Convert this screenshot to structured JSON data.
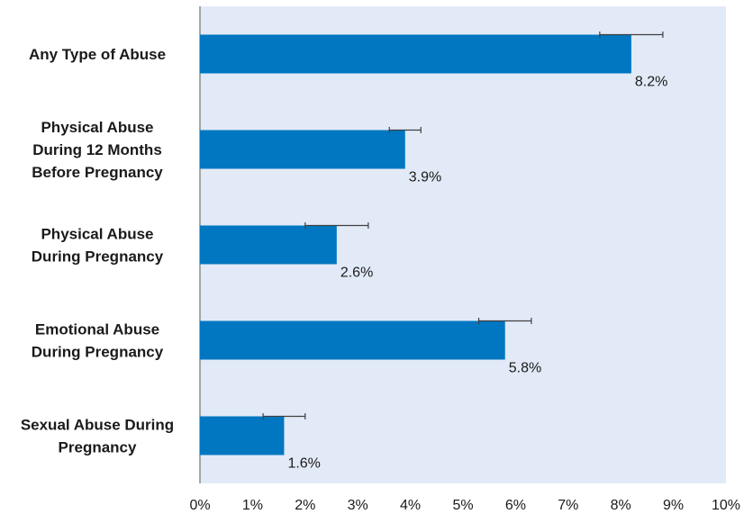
{
  "chart_data": {
    "type": "bar",
    "orientation": "horizontal",
    "categories": [
      [
        "Any Type of Abuse"
      ],
      [
        "Physical Abuse",
        "During 12 Months",
        "Before Pregnancy"
      ],
      [
        "Physical Abuse",
        "During Pregnancy"
      ],
      [
        "Emotional Abuse",
        "During Pregnancy"
      ],
      [
        "Sexual Abuse During",
        "Pregnancy"
      ]
    ],
    "values": [
      8.2,
      3.9,
      2.6,
      5.8,
      1.6
    ],
    "error_low": [
      7.6,
      3.6,
      2.0,
      5.3,
      1.2
    ],
    "error_high": [
      8.8,
      4.2,
      3.2,
      6.3,
      2.0
    ],
    "data_labels": [
      "8.2%",
      "3.9%",
      "2.6%",
      "5.8%",
      "1.6%"
    ],
    "xlim": [
      0,
      10
    ],
    "xticks": [
      0,
      1,
      2,
      3,
      4,
      5,
      6,
      7,
      8,
      9,
      10
    ],
    "xtick_labels": [
      "0%",
      "1%",
      "2%",
      "3%",
      "4%",
      "5%",
      "6%",
      "7%",
      "8%",
      "9%",
      "10%"
    ],
    "grid": false,
    "colors": {
      "bar": "#0077c0",
      "plot_background": "#e2eaf7",
      "axis": "#8c8c8c",
      "error_bar": "#404040"
    }
  }
}
